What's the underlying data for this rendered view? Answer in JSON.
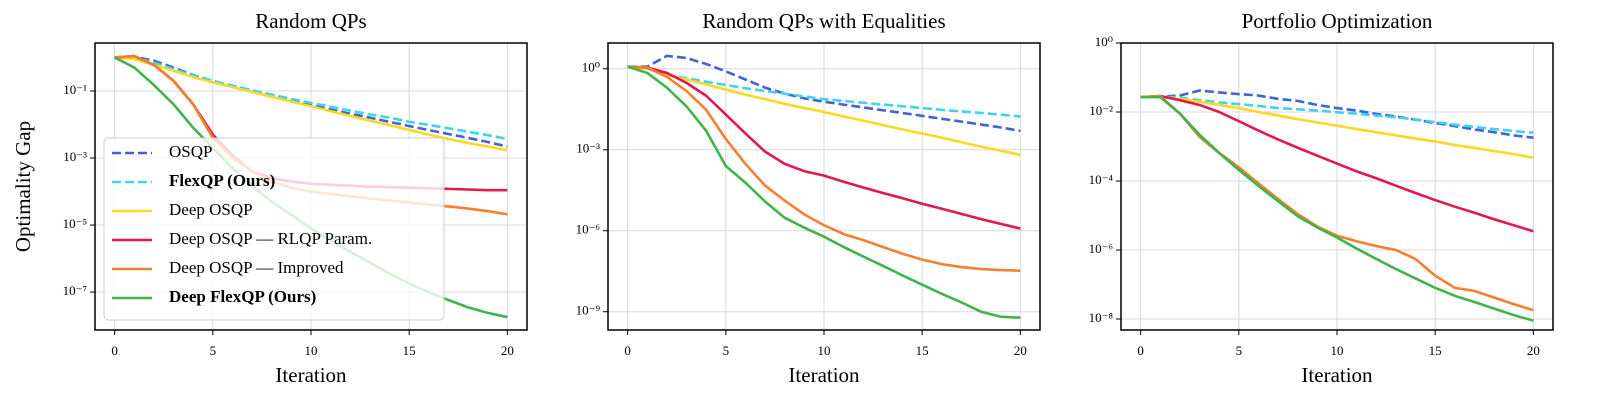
{
  "chart_data": [
    {
      "type": "line",
      "title": "Random QPs",
      "xlabel": "Iteration",
      "ylabel": "Optimality Gap",
      "log_y": true,
      "grid": true,
      "legend": "lower left",
      "x": [
        0,
        1,
        2,
        3,
        4,
        5,
        6,
        7,
        8,
        9,
        10,
        11,
        12,
        13,
        14,
        15,
        16,
        17,
        18,
        19,
        20
      ],
      "xlim": [
        -1,
        21
      ],
      "xticks": [
        0,
        5,
        10,
        15,
        20
      ],
      "ylim": [
        7.4e-09,
        2.7
      ],
      "yticks": [
        {
          "value": 0.1,
          "label": "10⁻¹"
        },
        {
          "value": 0.001,
          "label": "10⁻³"
        },
        {
          "value": 1e-05,
          "label": "10⁻⁵"
        },
        {
          "value": 1e-07,
          "label": "10⁻⁷"
        }
      ],
      "series": [
        {
          "name": "OSQP",
          "color": "#4262d6",
          "dashed": true,
          "values": [
            1,
            1.05,
            0.8,
            0.5,
            0.3,
            0.2,
            0.14,
            0.1,
            0.072,
            0.052,
            0.038,
            0.028,
            0.021,
            0.016,
            0.012,
            0.009,
            0.0068,
            0.0052,
            0.004,
            0.003,
            0.0022
          ]
        },
        {
          "name": "FlexQP (Ours)",
          "color": "#3fd3ee",
          "dashed": true,
          "bold": true,
          "values": [
            1,
            1,
            0.7,
            0.45,
            0.3,
            0.2,
            0.145,
            0.105,
            0.078,
            0.058,
            0.044,
            0.034,
            0.026,
            0.02,
            0.016,
            0.012,
            0.0097,
            0.0077,
            0.0061,
            0.0048,
            0.0037
          ]
        },
        {
          "name": "Deep OSQP",
          "color": "#fbd824",
          "values": [
            1,
            0.9,
            0.6,
            0.4,
            0.26,
            0.18,
            0.13,
            0.093,
            0.067,
            0.048,
            0.035,
            0.025,
            0.018,
            0.013,
            0.0095,
            0.0069,
            0.005,
            0.0037,
            0.0028,
            0.0022,
            0.0017
          ]
        },
        {
          "name": "Deep OSQP — RLQP Param.",
          "color": "#e0194e",
          "values": [
            1,
            1.1,
            0.6,
            0.2,
            0.04,
            0.005,
            0.0012,
            0.0004,
            0.00025,
            0.0002,
            0.00017,
            0.00016,
            0.00015,
            0.00014,
            0.000135,
            0.00013,
            0.000125,
            0.00012,
            0.000115,
            0.00011,
            0.00011
          ]
        },
        {
          "name": "Deep OSQP — Improved",
          "color": "#f47f2f",
          "values": [
            1,
            1.1,
            0.6,
            0.2,
            0.04,
            0.004,
            0.001,
            0.0004,
            0.0002,
            0.00013,
            0.0001,
            8.5e-05,
            7.2e-05,
            6.2e-05,
            5.4e-05,
            4.7e-05,
            4.1e-05,
            3.6e-05,
            3.1e-05,
            2.6e-05,
            2.1e-05
          ]
        },
        {
          "name": "Deep FlexQP (Ours)",
          "color": "#3fb44a",
          "bold": true,
          "values": [
            1,
            0.5,
            0.15,
            0.04,
            0.008,
            0.002,
            0.0005,
            0.00015,
            5e-05,
            2e-05,
            8e-06,
            3.5e-06,
            1.6e-06,
            7.5e-07,
            3.6e-07,
            1.8e-07,
            1e-07,
            5.8e-08,
            3.5e-08,
            2.4e-08,
            1.8e-08
          ]
        }
      ]
    },
    {
      "type": "line",
      "title": "Random QPs with Equalities",
      "xlabel": "Iteration",
      "log_y": true,
      "grid": true,
      "x": [
        0,
        1,
        2,
        3,
        4,
        5,
        6,
        7,
        8,
        9,
        10,
        11,
        12,
        13,
        14,
        15,
        16,
        17,
        18,
        19,
        20
      ],
      "xlim": [
        -1,
        21
      ],
      "xticks": [
        0,
        5,
        10,
        15,
        20
      ],
      "ylim": [
        2.1e-10,
        9
      ],
      "yticks": [
        {
          "value": 1,
          "label": "10⁰"
        },
        {
          "value": 0.001,
          "label": "10⁻³"
        },
        {
          "value": 1e-06,
          "label": "10⁻⁶"
        },
        {
          "value": 1e-09,
          "label": "10⁻⁹"
        }
      ],
      "series": [
        {
          "color": "#4262d6",
          "dashed": true,
          "values": [
            1.2,
            1.2,
            3,
            2.5,
            1.5,
            0.8,
            0.4,
            0.2,
            0.12,
            0.08,
            0.06,
            0.047,
            0.037,
            0.029,
            0.023,
            0.018,
            0.014,
            0.011,
            0.0086,
            0.0067,
            0.005
          ]
        },
        {
          "color": "#3fd3ee",
          "dashed": true,
          "values": [
            1.2,
            1.1,
            0.6,
            0.45,
            0.33,
            0.25,
            0.19,
            0.15,
            0.12,
            0.095,
            0.075,
            0.064,
            0.055,
            0.047,
            0.041,
            0.035,
            0.03,
            0.026,
            0.023,
            0.02,
            0.017
          ]
        },
        {
          "color": "#fbd824",
          "values": [
            1.2,
            1,
            0.6,
            0.4,
            0.26,
            0.17,
            0.11,
            0.075,
            0.05,
            0.035,
            0.025,
            0.017,
            0.012,
            0.0082,
            0.0057,
            0.004,
            0.0028,
            0.0019,
            0.0013,
            0.00092,
            0.00065
          ]
        },
        {
          "color": "#e0194e",
          "values": [
            1.2,
            1.1,
            0.7,
            0.3,
            0.1,
            0.02,
            0.004,
            0.00085,
            0.0003,
            0.00016,
            0.00011,
            6.5e-05,
            4e-05,
            2.5e-05,
            1.6e-05,
            1e-05,
            6.5e-06,
            4.2e-06,
            2.7e-06,
            1.8e-06,
            1.2e-06
          ]
        },
        {
          "color": "#f47f2f",
          "values": [
            1.2,
            1.1,
            0.5,
            0.15,
            0.03,
            0.0025,
            0.0003,
            4.7e-05,
            1.3e-05,
            4e-06,
            1.6e-06,
            7.5e-07,
            4.5e-07,
            2.5e-07,
            1.4e-07,
            8.5e-08,
            5.8e-08,
            4.5e-08,
            3.8e-08,
            3.5e-08,
            3.3e-08
          ]
        },
        {
          "color": "#3fb44a",
          "values": [
            1.2,
            0.7,
            0.2,
            0.04,
            0.005,
            0.00025,
            6e-05,
            1.2e-05,
            3e-06,
            1.3e-06,
            6e-07,
            2.5e-07,
            1.1e-07,
            5e-08,
            2.2e-08,
            1e-08,
            4.6e-09,
            2.2e-09,
            1e-09,
            6.5e-10,
            6e-10
          ]
        }
      ]
    },
    {
      "type": "line",
      "title": "Portfolio Optimization",
      "xlabel": "Iteration",
      "log_y": true,
      "grid": true,
      "x": [
        0,
        1,
        2,
        3,
        4,
        5,
        6,
        7,
        8,
        9,
        10,
        11,
        12,
        13,
        14,
        15,
        16,
        17,
        18,
        19,
        20
      ],
      "xlim": [
        -1,
        21
      ],
      "xticks": [
        0,
        5,
        10,
        15,
        20
      ],
      "ylim": [
        4.8e-09,
        1
      ],
      "yticks": [
        {
          "value": 1,
          "label": "10⁰"
        },
        {
          "value": 0.01,
          "label": "10⁻²"
        },
        {
          "value": 0.0001,
          "label": "10⁻⁴"
        },
        {
          "value": 1e-06,
          "label": "10⁻⁶"
        },
        {
          "value": 1e-08,
          "label": "10⁻⁸"
        }
      ],
      "series": [
        {
          "color": "#4262d6",
          "dashed": true,
          "values": [
            0.027,
            0.028,
            0.03,
            0.042,
            0.037,
            0.033,
            0.03,
            0.024,
            0.021,
            0.016,
            0.013,
            0.011,
            0.0088,
            0.0074,
            0.006,
            0.0048,
            0.0039,
            0.0031,
            0.0026,
            0.0021,
            0.0018
          ]
        },
        {
          "color": "#3fd3ee",
          "dashed": true,
          "values": [
            0.027,
            0.028,
            0.026,
            0.022,
            0.019,
            0.017,
            0.015,
            0.013,
            0.012,
            0.011,
            0.0098,
            0.0089,
            0.0079,
            0.007,
            0.0061,
            0.0051,
            0.0043,
            0.0037,
            0.0032,
            0.0028,
            0.0025
          ]
        },
        {
          "color": "#fbd824",
          "values": [
            0.027,
            0.027,
            0.024,
            0.02,
            0.016,
            0.013,
            0.01,
            0.0079,
            0.0062,
            0.005,
            0.004,
            0.0032,
            0.0026,
            0.0021,
            0.0017,
            0.0014,
            0.0011,
            0.00091,
            0.00074,
            0.0006,
            0.00047
          ]
        },
        {
          "color": "#e0194e",
          "values": [
            0.027,
            0.029,
            0.022,
            0.016,
            0.01,
            0.0054,
            0.0029,
            0.0016,
            0.00092,
            0.00054,
            0.00032,
            0.00019,
            0.00012,
            7.3e-05,
            4.5e-05,
            2.8e-05,
            1.8e-05,
            1.2e-05,
            7.8e-06,
            5.2e-06,
            3.5e-06
          ]
        },
        {
          "color": "#f47f2f",
          "values": [
            0.027,
            0.029,
            0.009,
            0.0019,
            0.00065,
            0.00025,
            8.5e-05,
            3e-05,
            1.1e-05,
            4.8e-06,
            2.6e-06,
            1.8e-06,
            1.3e-06,
            1e-06,
            5.5e-07,
            1.8e-07,
            8e-08,
            6.5e-08,
            4.2e-08,
            2.7e-08,
            1.8e-08
          ]
        },
        {
          "color": "#3fb44a",
          "values": [
            0.027,
            0.027,
            0.009,
            0.0022,
            0.00065,
            0.00021,
            7.2e-05,
            2.6e-05,
            9.5e-06,
            4.5e-06,
            2.3e-06,
            1.1e-06,
            5.5e-07,
            2.8e-07,
            1.5e-07,
            8e-08,
            4.7e-08,
            3.1e-08,
            2e-08,
            1.3e-08,
            9e-09
          ]
        }
      ]
    }
  ]
}
